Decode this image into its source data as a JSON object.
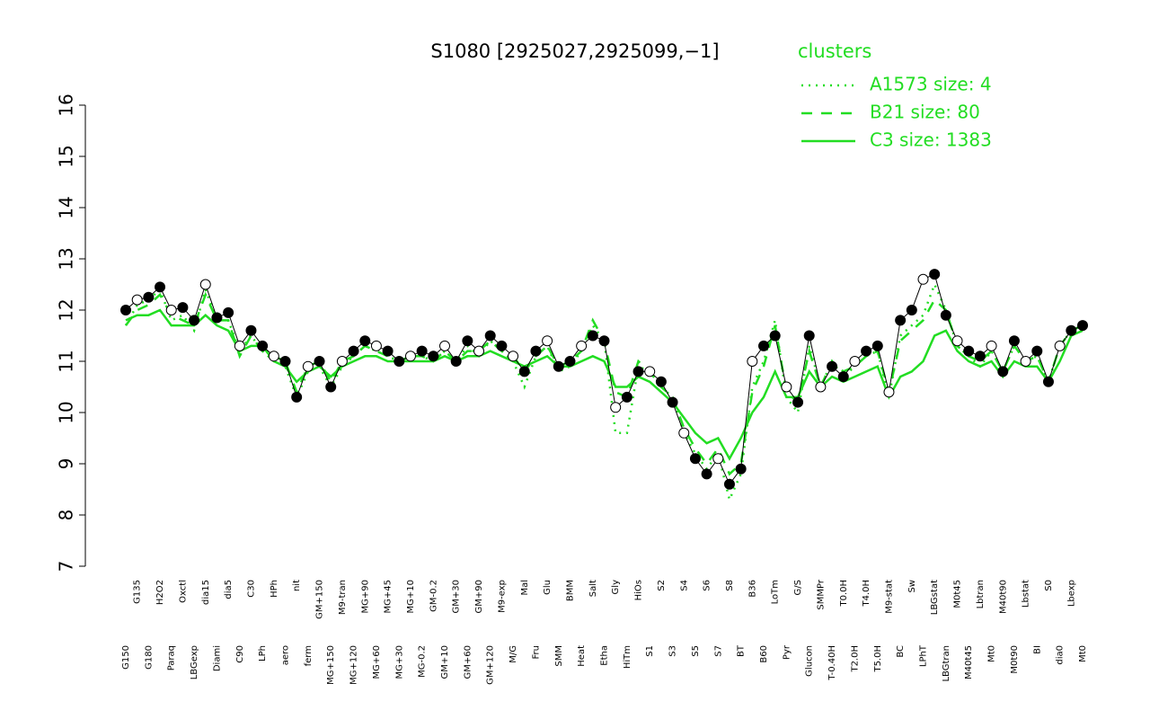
{
  "chart_data": {
    "type": "line",
    "title": "S1080 [2925027,2925099,−1]",
    "legend_title": "clusters",
    "legend_position": "top-right",
    "color": "#000000",
    "categories": [
      "G150",
      "G135",
      "G180",
      "H2O2",
      "Paraq",
      "Oxctl",
      "LBGexp",
      "dia15",
      "Diami",
      "dia5",
      "C90",
      "C30",
      "LPh",
      "HPh",
      "aero",
      "nit",
      "ferm",
      "GM+150",
      "MG+150",
      "M9-tran",
      "MG+120",
      "MG+90",
      "MG+60",
      "MG+45",
      "MG+30",
      "MG+10",
      "MG-0.2",
      "GM-0.2",
      "GM+10",
      "GM+30",
      "GM+60",
      "GM+90",
      "GM+120",
      "M9-exp",
      "M/G",
      "Mal",
      "Fru",
      "Glu",
      "SMM",
      "BMM",
      "Heat",
      "Salt",
      "Etha",
      "Gly",
      "HiTm",
      "HiOs",
      "S1",
      "S2",
      "S3",
      "S4",
      "S5",
      "S6",
      "S7",
      "S8",
      "BT",
      "B36",
      "B60",
      "LoTm",
      "Pyr",
      "G/S",
      "Glucon",
      "SMMPr",
      "T-0.40H",
      "T0.0H",
      "T2.0H",
      "T4.0H",
      "T5.0H",
      "M9-stat",
      "BC",
      "Sw",
      "LPhT",
      "LBGstat",
      "LBGtran",
      "M0t45",
      "M40t45",
      "Lbtran",
      "Mt0",
      "M40t90",
      "M0t90",
      "Lbstat",
      "BI",
      "S0",
      "dia0",
      "Lbexp",
      "Mt0"
    ],
    "values": [
      12.0,
      12.2,
      12.25,
      12.45,
      12.0,
      12.05,
      11.8,
      12.5,
      11.85,
      11.95,
      11.3,
      11.6,
      11.3,
      11.1,
      11.0,
      10.3,
      10.9,
      11.0,
      10.5,
      11.0,
      11.2,
      11.4,
      11.3,
      11.2,
      11.0,
      11.1,
      11.2,
      11.1,
      11.3,
      11.0,
      11.4,
      11.2,
      11.5,
      11.3,
      11.1,
      10.8,
      11.2,
      11.4,
      10.9,
      11.0,
      11.3,
      11.5,
      11.4,
      10.1,
      10.3,
      10.8,
      10.8,
      10.6,
      10.2,
      9.6,
      9.1,
      8.8,
      9.1,
      8.6,
      8.9,
      11.0,
      11.3,
      11.5,
      10.5,
      10.2,
      11.5,
      10.5,
      10.9,
      10.7,
      11.0,
      11.2,
      11.3,
      10.4,
      11.8,
      12.0,
      12.6,
      12.7,
      11.9,
      11.4,
      11.2,
      11.1,
      11.3,
      10.8,
      11.4,
      11.0,
      11.2,
      10.6,
      11.3,
      11.6,
      11.7
    ],
    "series": [
      {
        "name": "A1573 size: 4",
        "color": "#22dd22",
        "dash": "dotted",
        "values": [
          11.7,
          12.1,
          12.2,
          12.4,
          11.8,
          11.9,
          11.6,
          12.4,
          11.8,
          11.8,
          11.2,
          11.5,
          11.2,
          11.0,
          10.9,
          10.3,
          10.8,
          10.9,
          10.5,
          10.9,
          11.1,
          11.3,
          11.2,
          11.1,
          11.0,
          11.1,
          11.1,
          11.0,
          11.2,
          11.0,
          11.3,
          11.1,
          11.4,
          11.2,
          11.0,
          10.5,
          11.1,
          11.3,
          10.8,
          10.9,
          11.2,
          11.7,
          11.4,
          9.6,
          9.6,
          10.9,
          10.8,
          10.5,
          10.3,
          9.6,
          9.2,
          8.9,
          9.2,
          8.3,
          8.8,
          10.5,
          11.0,
          11.8,
          10.3,
          10.0,
          11.3,
          10.5,
          11.0,
          10.7,
          10.9,
          11.1,
          11.2,
          10.3,
          11.5,
          11.7,
          11.9,
          12.5,
          12.0,
          11.3,
          11.1,
          10.9,
          11.2,
          10.8,
          11.3,
          11.0,
          11.1,
          10.6,
          11.3,
          11.6,
          11.7
        ]
      },
      {
        "name": "B21 size: 80",
        "color": "#22dd22",
        "dash": "dashed",
        "values": [
          11.7,
          12.0,
          12.1,
          12.3,
          11.9,
          11.8,
          11.7,
          12.3,
          11.8,
          11.8,
          11.1,
          11.5,
          11.2,
          11.1,
          11.0,
          10.4,
          10.9,
          11.0,
          10.6,
          11.0,
          11.1,
          11.3,
          11.2,
          11.1,
          11.0,
          11.1,
          11.1,
          11.0,
          11.2,
          11.0,
          11.2,
          11.2,
          11.4,
          11.2,
          11.1,
          10.8,
          11.1,
          11.3,
          10.9,
          11.0,
          11.2,
          11.8,
          11.4,
          10.4,
          10.3,
          11.0,
          10.8,
          10.5,
          10.3,
          9.7,
          9.3,
          9.0,
          9.3,
          8.8,
          9.0,
          10.4,
          10.9,
          11.7,
          10.4,
          10.2,
          11.2,
          10.5,
          11.0,
          10.8,
          10.9,
          11.1,
          11.2,
          10.4,
          11.4,
          11.6,
          11.8,
          12.2,
          12.0,
          11.3,
          11.1,
          11.0,
          11.2,
          10.8,
          11.3,
          11.0,
          11.1,
          10.6,
          11.3,
          11.6,
          11.7
        ]
      },
      {
        "name": "C3 size: 1383",
        "color": "#22dd22",
        "dash": "solid",
        "values": [
          11.8,
          11.9,
          11.9,
          12.0,
          11.7,
          11.7,
          11.7,
          11.9,
          11.7,
          11.6,
          11.2,
          11.3,
          11.3,
          11.0,
          10.9,
          10.6,
          10.8,
          10.9,
          10.7,
          10.9,
          11.0,
          11.1,
          11.1,
          11.0,
          11.0,
          11.0,
          11.0,
          11.0,
          11.1,
          11.0,
          11.1,
          11.1,
          11.2,
          11.1,
          11.0,
          10.9,
          11.0,
          11.1,
          10.9,
          10.9,
          11.0,
          11.1,
          11.0,
          10.5,
          10.5,
          10.7,
          10.6,
          10.4,
          10.2,
          9.9,
          9.6,
          9.4,
          9.5,
          9.1,
          9.5,
          10.0,
          10.3,
          10.8,
          10.3,
          10.3,
          10.8,
          10.5,
          10.7,
          10.6,
          10.7,
          10.8,
          10.9,
          10.3,
          10.7,
          10.8,
          11.0,
          11.5,
          11.6,
          11.2,
          11.0,
          10.9,
          11.0,
          10.7,
          11.0,
          10.9,
          10.9,
          10.6,
          11.0,
          11.5,
          11.6
        ]
      }
    ],
    "ylim": [
      7,
      16
    ],
    "yticks": [
      7,
      8,
      9,
      10,
      11,
      12,
      13,
      14,
      15,
      16
    ]
  }
}
